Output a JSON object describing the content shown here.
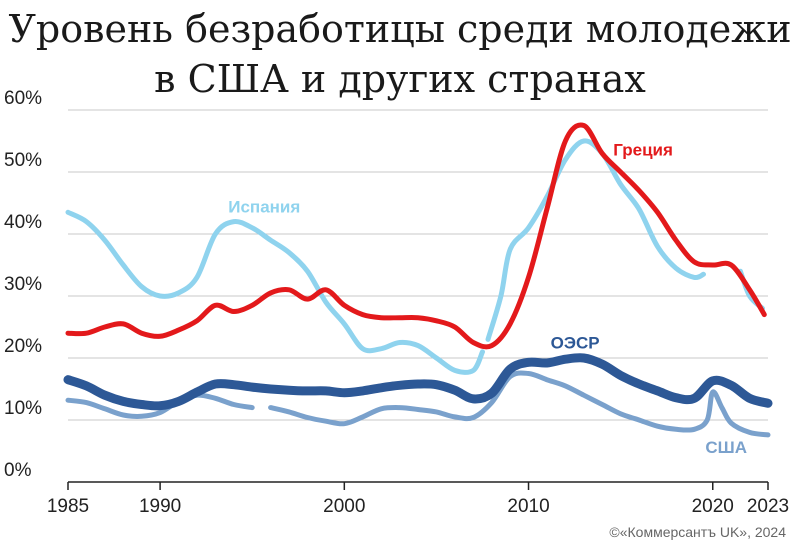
{
  "title_line1": "Уровень безработицы среди молодежи",
  "title_line2": "в США и других странах",
  "credit": "©«Коммерсантъ UK», 2024",
  "chart_data": {
    "type": "line",
    "title": "Уровень безработицы среди молодежи в США и других странах",
    "xlim": [
      1985,
      2023
    ],
    "ylim": [
      0,
      60
    ],
    "x_ticks": [
      1985,
      1990,
      2000,
      2010,
      2020,
      2023
    ],
    "y_ticks": [
      0,
      10,
      20,
      30,
      40,
      50,
      60
    ],
    "y_tick_labels": [
      "0%",
      "10%",
      "20%",
      "30%",
      "40%",
      "50%",
      "60%"
    ],
    "grid": true,
    "series": [
      {
        "name": "Испания",
        "color": "#8fd3ee",
        "width": 5,
        "points": [
          [
            1985,
            43.5
          ],
          [
            1986,
            42
          ],
          [
            1987,
            39
          ],
          [
            1988,
            35
          ],
          [
            1989,
            31.5
          ],
          [
            1990,
            30
          ],
          [
            1991,
            30.5
          ],
          [
            1992,
            33
          ],
          [
            1993,
            40
          ],
          [
            1994,
            42
          ],
          [
            1995,
            41
          ],
          [
            1996,
            39
          ],
          [
            1997,
            37
          ],
          [
            1998,
            34
          ],
          [
            1999,
            29
          ],
          [
            2000,
            25.5
          ],
          [
            2001,
            21.5
          ],
          [
            2002,
            21.5
          ],
          [
            2003,
            22.5
          ],
          [
            2004,
            22
          ],
          [
            2005,
            20
          ],
          [
            2006,
            18
          ],
          [
            2007,
            18
          ],
          [
            2007.5,
            21
          ]
        ],
        "points2": [
          [
            2007.8,
            23
          ],
          [
            2008.5,
            30
          ],
          [
            2009,
            37.5
          ],
          [
            2010,
            41
          ],
          [
            2011,
            46
          ],
          [
            2012,
            52
          ],
          [
            2013,
            55
          ],
          [
            2014,
            53
          ],
          [
            2015,
            48
          ],
          [
            2016,
            44
          ],
          [
            2017,
            38
          ],
          [
            2018,
            34.5
          ],
          [
            2019,
            33
          ],
          [
            2019.5,
            33.5
          ]
        ],
        "points3": [
          [
            2021.5,
            34
          ],
          [
            2022,
            30
          ],
          [
            2022.7,
            28
          ]
        ]
      },
      {
        "name": "Греция",
        "color": "#e3191b",
        "width": 5,
        "points": [
          [
            1985,
            24
          ],
          [
            1986,
            24
          ],
          [
            1987,
            25
          ],
          [
            1988,
            25.5
          ],
          [
            1989,
            24
          ],
          [
            1990,
            23.5
          ],
          [
            1991,
            24.5
          ],
          [
            1992,
            26
          ],
          [
            1993,
            28.5
          ],
          [
            1994,
            27.5
          ],
          [
            1995,
            28.5
          ],
          [
            1996,
            30.5
          ],
          [
            1997,
            31
          ],
          [
            1998,
            29.5
          ],
          [
            1999,
            31
          ],
          [
            2000,
            28.5
          ],
          [
            2001,
            27
          ],
          [
            2002,
            26.5
          ],
          [
            2003,
            26.5
          ],
          [
            2004,
            26.5
          ],
          [
            2005,
            26
          ],
          [
            2006,
            25
          ],
          [
            2007,
            22.5
          ],
          [
            2008,
            22
          ],
          [
            2009,
            25.5
          ],
          [
            2010,
            33
          ],
          [
            2011,
            44
          ],
          [
            2012,
            55
          ],
          [
            2013,
            57.5
          ],
          [
            2014,
            53
          ],
          [
            2015,
            50
          ],
          [
            2016,
            47
          ],
          [
            2017,
            43.5
          ],
          [
            2018,
            39
          ],
          [
            2019,
            35.5
          ],
          [
            2020,
            35
          ],
          [
            2021,
            35
          ],
          [
            2022,
            31
          ],
          [
            2022.8,
            27
          ]
        ]
      },
      {
        "name": "ОЭСР",
        "color": "#2d5896",
        "width": 9,
        "points": [
          [
            1985,
            16.5
          ],
          [
            1986,
            15.5
          ],
          [
            1987,
            14
          ],
          [
            1988,
            13
          ],
          [
            1989,
            12.5
          ],
          [
            1990,
            12.3
          ],
          [
            1991,
            13
          ],
          [
            1992,
            14.5
          ],
          [
            1993,
            15.8
          ],
          [
            1994,
            15.7
          ],
          [
            1995,
            15.3
          ],
          [
            1996,
            15
          ],
          [
            1997,
            14.8
          ],
          [
            1998,
            14.7
          ],
          [
            1999,
            14.7
          ],
          [
            2000,
            14.4
          ],
          [
            2001,
            14.7
          ],
          [
            2002,
            15.2
          ],
          [
            2003,
            15.6
          ],
          [
            2004,
            15.8
          ],
          [
            2005,
            15.7
          ],
          [
            2006,
            14.8
          ],
          [
            2007,
            13.4
          ],
          [
            2008,
            14.3
          ],
          [
            2009,
            18.2
          ],
          [
            2010,
            19.3
          ],
          [
            2011,
            19.2
          ],
          [
            2012,
            19.8
          ],
          [
            2013,
            20
          ],
          [
            2014,
            19
          ],
          [
            2015,
            17.2
          ],
          [
            2016,
            15.8
          ],
          [
            2017,
            14.7
          ],
          [
            2018,
            13.6
          ],
          [
            2019,
            13.5
          ],
          [
            2020,
            16.3
          ],
          [
            2021,
            15.6
          ],
          [
            2022,
            13.5
          ],
          [
            2023,
            12.7
          ]
        ]
      },
      {
        "name": "США",
        "color": "#7aa1cc",
        "width": 5,
        "points": [
          [
            1985,
            13.2
          ],
          [
            1986,
            12.8
          ],
          [
            1987,
            11.8
          ],
          [
            1988,
            10.8
          ],
          [
            1989,
            10.6
          ],
          [
            1990,
            11.2
          ],
          [
            1991,
            13
          ],
          [
            1992,
            14
          ],
          [
            1993,
            13.5
          ],
          [
            1994,
            12.5
          ],
          [
            1995,
            12
          ]
        ],
        "points2": [
          [
            1996,
            12
          ],
          [
            1997,
            11.3
          ],
          [
            1998,
            10.4
          ],
          [
            1999,
            9.8
          ],
          [
            2000,
            9.4
          ],
          [
            2001,
            10.5
          ],
          [
            2002,
            11.8
          ],
          [
            2003,
            12
          ],
          [
            2004,
            11.7
          ],
          [
            2005,
            11.3
          ],
          [
            2006,
            10.5
          ],
          [
            2007,
            10.4
          ],
          [
            2008,
            12.8
          ],
          [
            2009,
            17
          ],
          [
            2010,
            17.5
          ],
          [
            2011,
            16.5
          ],
          [
            2012,
            15.5
          ],
          [
            2013,
            14
          ],
          [
            2014,
            12.5
          ],
          [
            2015,
            11
          ],
          [
            2016,
            10
          ],
          [
            2017,
            9
          ],
          [
            2018,
            8.5
          ],
          [
            2019,
            8.5
          ],
          [
            2019.7,
            10
          ],
          [
            2020,
            14.5
          ],
          [
            2020.5,
            12
          ],
          [
            2021,
            9.5
          ],
          [
            2022,
            8
          ],
          [
            2023,
            7.6
          ]
        ]
      }
    ],
    "labels": [
      {
        "text": "Испания",
        "x": 1993.7,
        "y": 43.5,
        "color": "#8fd3ee"
      },
      {
        "text": "Греция",
        "x": 2014.6,
        "y": 52.7,
        "color": "#e3191b"
      },
      {
        "text": "ОЭСР",
        "x": 2011.2,
        "y": 21.5,
        "color": "#2d5896"
      },
      {
        "text": "США",
        "x": 2019.6,
        "y": 4.7,
        "color": "#7aa1cc"
      }
    ]
  }
}
